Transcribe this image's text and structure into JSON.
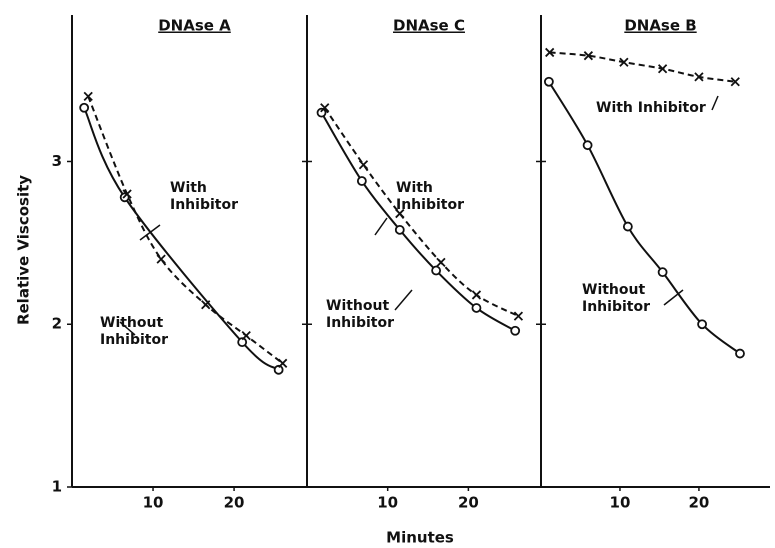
{
  "chart_data": [
    {
      "type": "line",
      "title": "DNAse A",
      "ylabel": "Relative Viscosity",
      "xlim": [
        0,
        29
      ],
      "xticks": [
        10,
        20
      ],
      "ylim": [
        1,
        3.9
      ],
      "yticks": [
        1,
        2,
        3
      ],
      "series": [
        {
          "name": "Without Inhibitor",
          "color": "#111111",
          "marker": "o",
          "dashed": false,
          "x": [
            1.5,
            6.5,
            21,
            25.5
          ],
          "values": [
            3.33,
            2.78,
            1.89,
            1.72
          ]
        },
        {
          "name": "With Inhibitor",
          "color": "#111111",
          "marker": "x",
          "dashed": true,
          "x": [
            2,
            6.8,
            11,
            16.5,
            21.5,
            26
          ],
          "values": [
            3.4,
            2.8,
            2.4,
            2.12,
            1.93,
            1.76
          ]
        }
      ]
    },
    {
      "type": "line",
      "title": "DNAse C",
      "xlabel": "Minutes",
      "xlim": [
        0,
        29
      ],
      "xticks": [
        10,
        20
      ],
      "ylim": [
        1,
        3.9
      ],
      "yticks": [
        1,
        2,
        3
      ],
      "series": [
        {
          "name": "Without Inhibitor",
          "color": "#111111",
          "marker": "o",
          "dashed": false,
          "x": [
            1.8,
            6.8,
            11.5,
            16,
            21,
            25.8
          ],
          "values": [
            3.3,
            2.88,
            2.58,
            2.33,
            2.1,
            1.96
          ]
        },
        {
          "name": "With Inhibitor",
          "color": "#111111",
          "marker": "x",
          "dashed": true,
          "x": [
            2.2,
            7,
            11.5,
            16.6,
            21,
            26.2
          ],
          "values": [
            3.33,
            2.98,
            2.68,
            2.38,
            2.18,
            2.05
          ]
        }
      ]
    },
    {
      "type": "line",
      "title": "DNAse B",
      "xlim": [
        0,
        29
      ],
      "xticks": [
        10,
        20
      ],
      "ylim": [
        1,
        3.9
      ],
      "yticks": [
        1,
        2,
        3
      ],
      "series": [
        {
          "name": "Without Inhibitor",
          "color": "#111111",
          "marker": "o",
          "dashed": false,
          "x": [
            1,
            5.9,
            11,
            15.4,
            20.4,
            25.2
          ],
          "values": [
            3.49,
            3.1,
            2.6,
            2.32,
            2.0,
            1.82
          ]
        },
        {
          "name": "With Inhibitor",
          "color": "#111111",
          "marker": "x",
          "dashed": true,
          "x": [
            1.1,
            6,
            10.5,
            15.4,
            20,
            24.6
          ],
          "values": [
            3.67,
            3.65,
            3.61,
            3.57,
            3.52,
            3.49
          ]
        }
      ]
    }
  ]
}
